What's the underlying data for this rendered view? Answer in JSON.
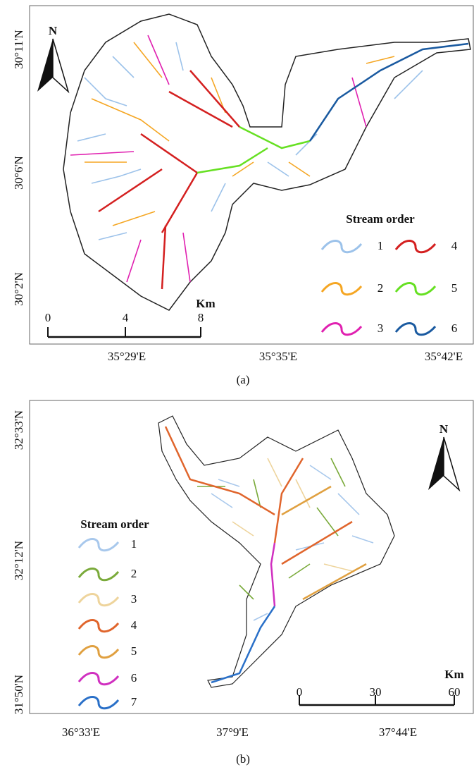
{
  "panels": [
    {
      "lat_labels": [
        "30°11'N",
        "30°6'N",
        "30°2'N"
      ],
      "lon_labels": [
        "35°29'E",
        "35°35'E",
        "35°42'E"
      ],
      "north": "N",
      "scale_bar": {
        "unit": "Km",
        "labels": [
          "0",
          "4",
          "8"
        ]
      },
      "legend": {
        "title": "Stream order",
        "items": [
          {
            "label": "1",
            "color": "#9cc2ea"
          },
          {
            "label": "2",
            "color": "#f5a623"
          },
          {
            "label": "3",
            "color": "#e020b0"
          },
          {
            "label": "4",
            "color": "#d42020"
          },
          {
            "label": "5",
            "color": "#66e022"
          },
          {
            "label": "6",
            "color": "#1a5aa0"
          }
        ]
      },
      "caption": "(a)"
    },
    {
      "lat_labels": [
        "32°33'N",
        "32°12'N",
        "31°50'N"
      ],
      "lon_labels": [
        "36°33'E",
        "37°9'E",
        "37°44'E"
      ],
      "north": "N",
      "scale_bar": {
        "unit": "Km",
        "labels": [
          "0",
          "30",
          "60"
        ]
      },
      "legend": {
        "title": "Stream order",
        "items": [
          {
            "label": "1",
            "color": "#a8c8ec"
          },
          {
            "label": "2",
            "color": "#7aaa3a"
          },
          {
            "label": "3",
            "color": "#eed49c"
          },
          {
            "label": "4",
            "color": "#e0652c"
          },
          {
            "label": "5",
            "color": "#e0a040"
          },
          {
            "label": "6",
            "color": "#d030c0"
          },
          {
            "label": "7",
            "color": "#2a70c8"
          }
        ]
      },
      "caption": "(b)"
    }
  ]
}
